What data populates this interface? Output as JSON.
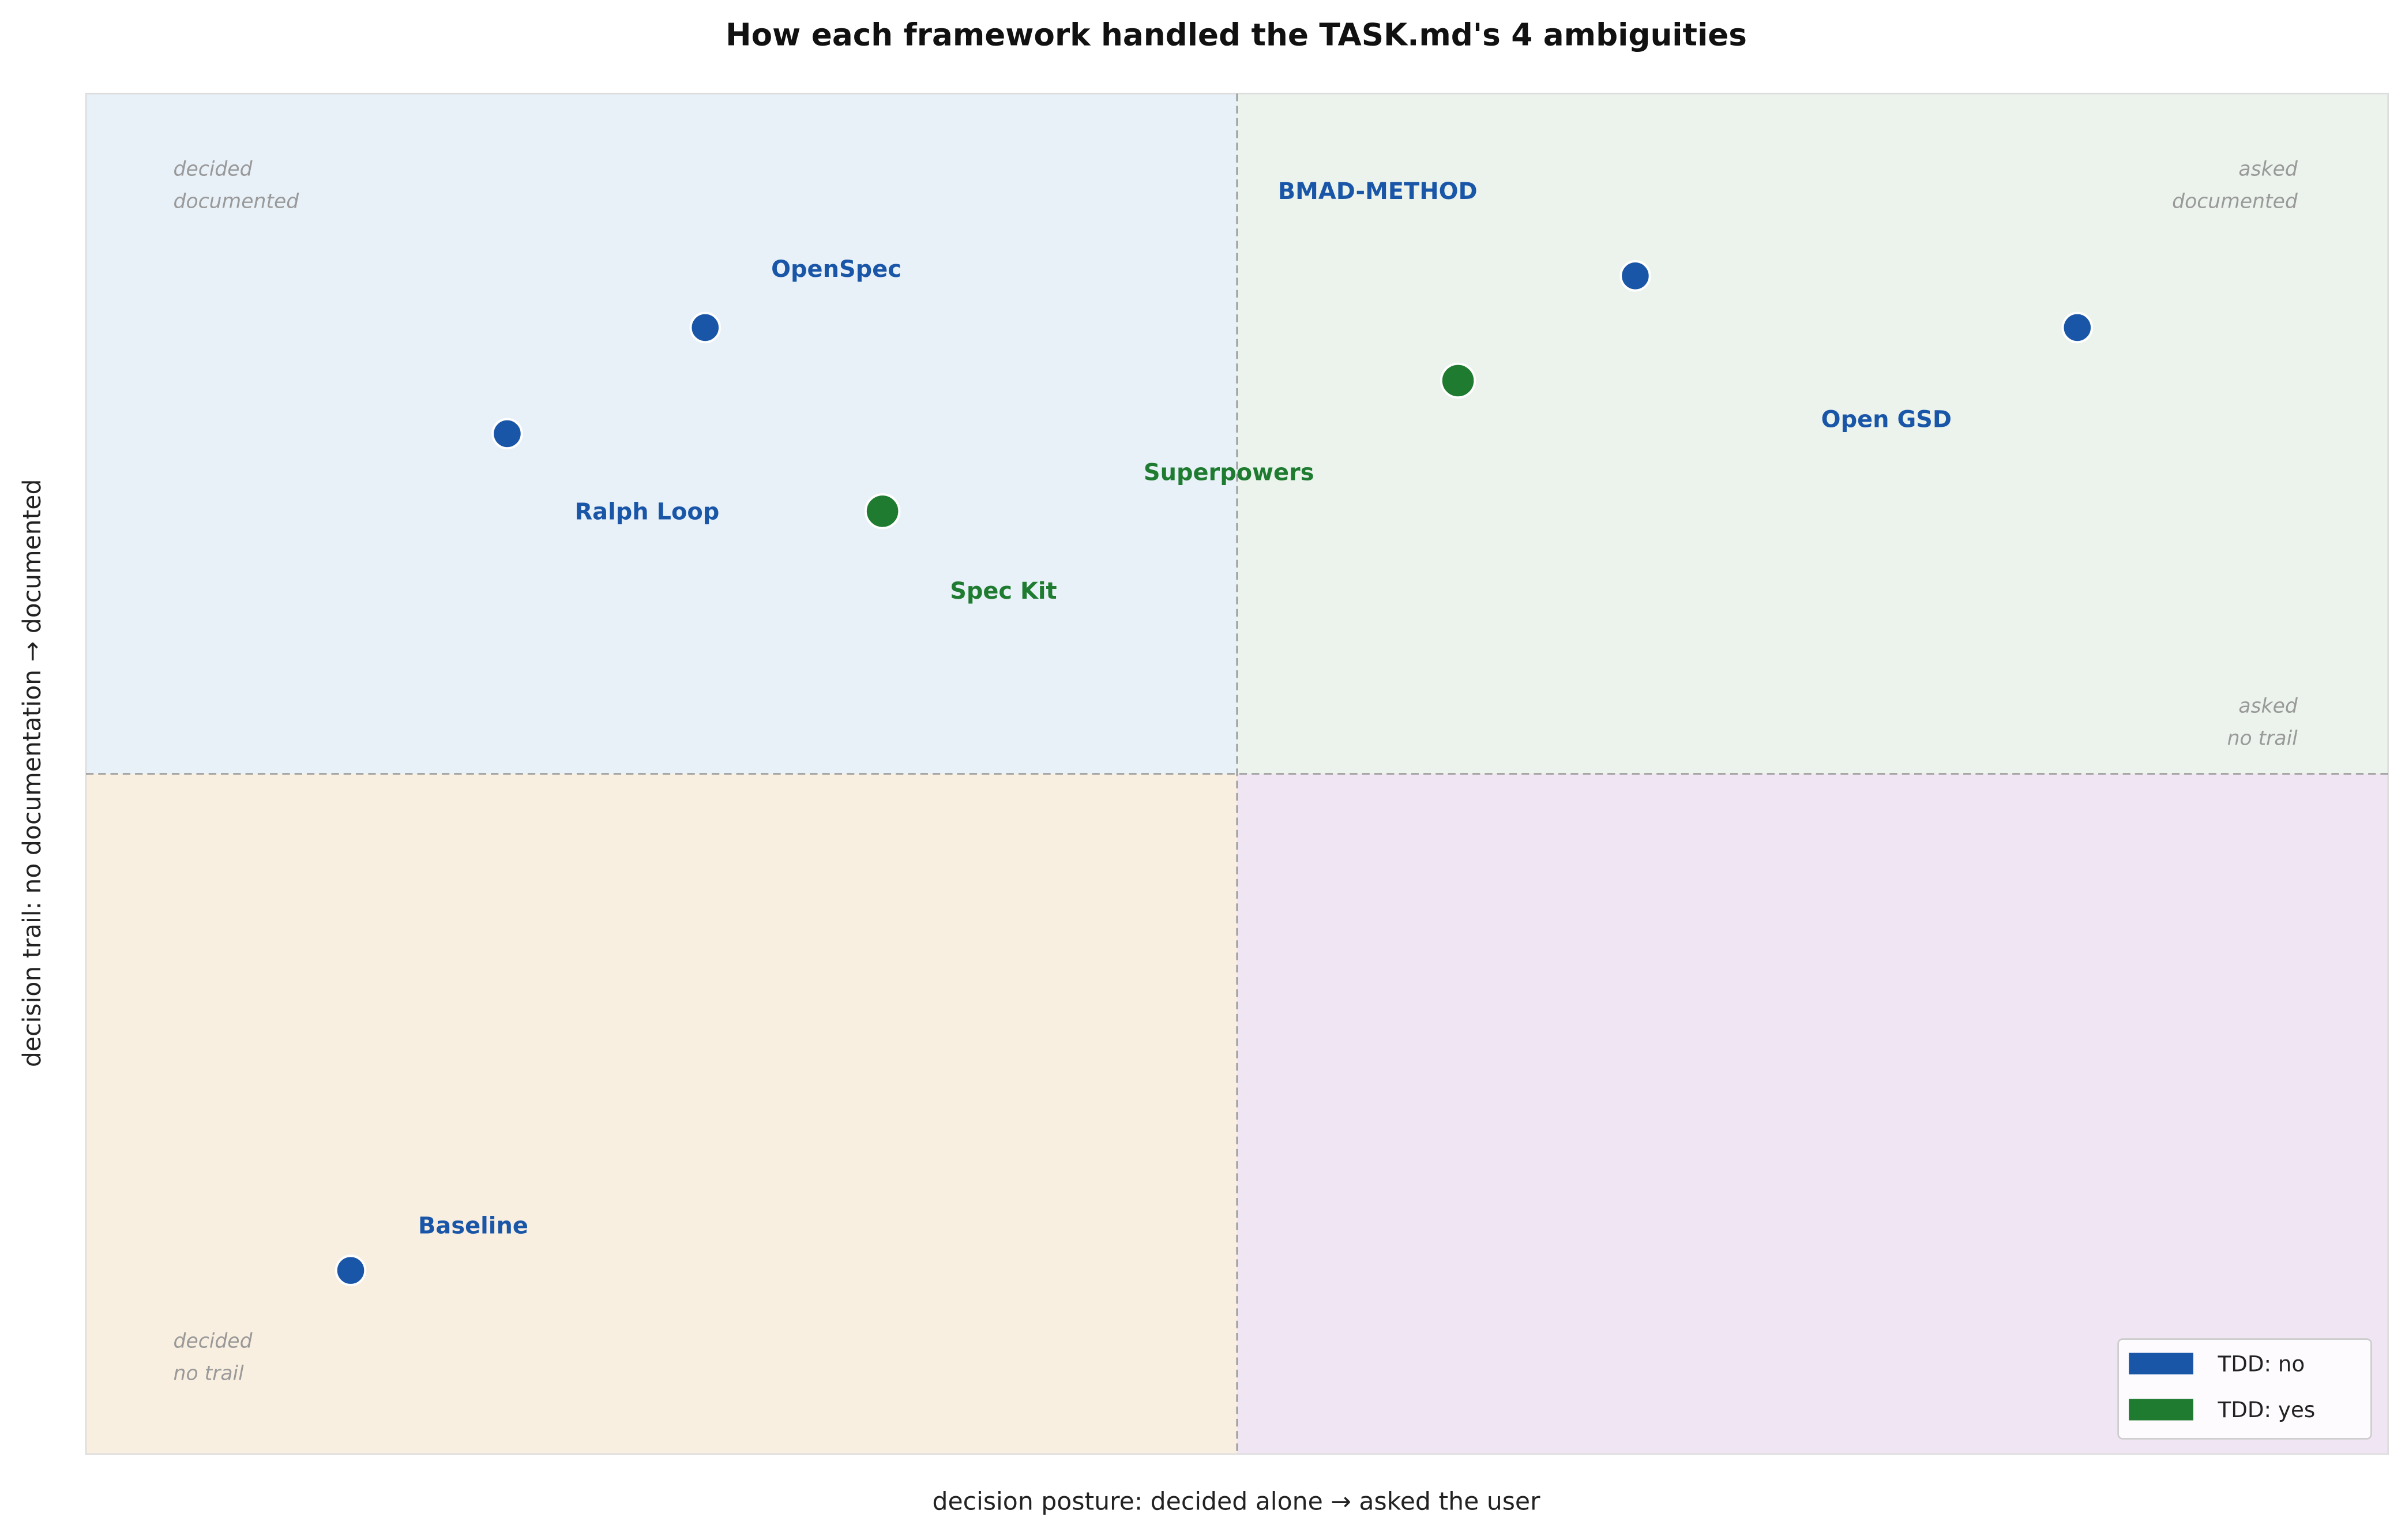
{
  "chart_data": {
    "type": "scatter",
    "title": "How each framework handled the TASK.md's 4 ambiguities",
    "x_label": "decision posture: decided alone  →  asked the user",
    "y_label": "decision trail: no documentation  →  documented",
    "xlim": [
      0,
      1
    ],
    "ylim": [
      0,
      1
    ],
    "quadrant_labels": [
      [
        "decided",
        "documented"
      ],
      [
        "asked",
        "documented"
      ],
      [
        "asked",
        "no trail"
      ],
      [
        "decided",
        "no trail"
      ]
    ],
    "series": [
      {
        "name": "TDD: no",
        "color": "#1a56a8",
        "labels": [
          "OpenSpec",
          "Ralph Loop",
          "BMAD-METHOD",
          "Open GSD",
          "Baseline"
        ],
        "x": [
          0.269,
          0.183,
          0.673,
          0.865,
          0.115
        ],
        "values": [
          0.828,
          0.75,
          0.866,
          0.828,
          0.135
        ]
      },
      {
        "name": "TDD: yes",
        "color": "#1e7b30",
        "labels": [
          "Spec Kit",
          "Superpowers"
        ],
        "x": [
          0.346,
          0.596
        ],
        "values": [
          0.693,
          0.789
        ]
      }
    ],
    "legend": "lower right"
  }
}
